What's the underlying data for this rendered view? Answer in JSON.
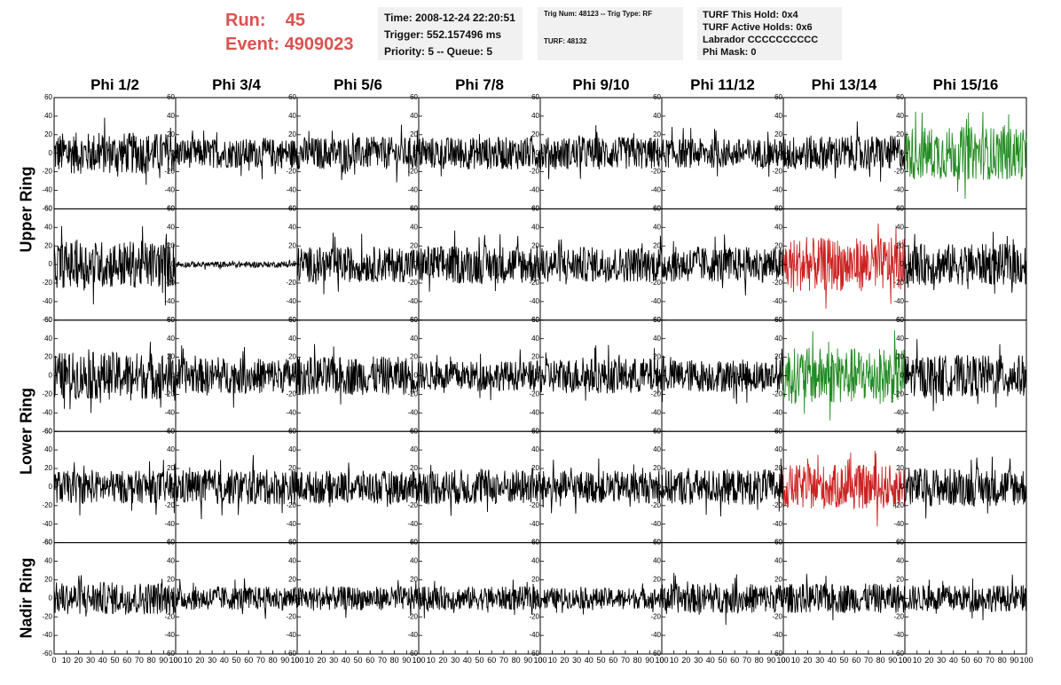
{
  "header": {
    "run_label": "Run:",
    "run_value": "45",
    "event_label": "Event:",
    "event_value": "4909023",
    "time": "Time: 2008-12-24 22:20:51",
    "trigger": "Trigger: 552.157496 ms",
    "priority": "Priority: 5 -- Queue: 5",
    "trig_num": "Trig Num: 48123 -- Trig Type: RF",
    "turf": "TURF: 48132",
    "turf_this_hold": "TURF This Hold: 0x4",
    "turf_active_holds": "TURF Active Holds: 0x6",
    "labrador": "Labrador CCCCCCCCCC",
    "phi_mask": "Phi Mask: 0"
  },
  "columns": [
    "Phi 1/2",
    "Phi 3/4",
    "Phi 5/6",
    "Phi 7/8",
    "Phi 9/10",
    "Phi 11/12",
    "Phi 13/14",
    "Phi 15/16"
  ],
  "ring_labels": [
    "Upper Ring",
    "Lower Ring",
    "Nadir Ring"
  ],
  "chart_data": {
    "type": "line",
    "panel_rows": 5,
    "panel_cols": 8,
    "xlim": [
      0,
      100
    ],
    "ylim": [
      -60,
      60
    ],
    "x_ticks": [
      "0",
      "10",
      "20",
      "30",
      "40",
      "50",
      "60",
      "70",
      "80",
      "90",
      "100"
    ],
    "y_ticks": [
      "-60",
      "-40",
      "-20",
      "0",
      "20",
      "40",
      "60"
    ],
    "colors": {
      "normal": "#000000",
      "green": "#228b22",
      "red": "#cc2222"
    },
    "panels": [
      [
        {
          "amp": 14,
          "color": "normal"
        },
        {
          "amp": 10,
          "color": "normal"
        },
        {
          "amp": 11,
          "color": "normal"
        },
        {
          "amp": 11,
          "color": "normal"
        },
        {
          "amp": 11,
          "color": "normal"
        },
        {
          "amp": 10,
          "color": "normal"
        },
        {
          "amp": 12,
          "color": "normal"
        },
        {
          "amp": 18,
          "color": "green"
        }
      ],
      [
        {
          "amp": 16,
          "color": "normal"
        },
        {
          "amp": 2,
          "color": "normal"
        },
        {
          "amp": 12,
          "color": "normal"
        },
        {
          "amp": 13,
          "color": "normal"
        },
        {
          "amp": 12,
          "color": "normal"
        },
        {
          "amp": 12,
          "color": "normal"
        },
        {
          "amp": 18,
          "color": "red"
        },
        {
          "amp": 14,
          "color": "normal"
        }
      ],
      [
        {
          "amp": 16,
          "color": "normal"
        },
        {
          "amp": 12,
          "color": "normal"
        },
        {
          "amp": 13,
          "color": "normal"
        },
        {
          "amp": 10,
          "color": "normal"
        },
        {
          "amp": 12,
          "color": "normal"
        },
        {
          "amp": 11,
          "color": "normal"
        },
        {
          "amp": 19,
          "color": "green"
        },
        {
          "amp": 14,
          "color": "normal"
        }
      ],
      [
        {
          "amp": 11,
          "color": "normal"
        },
        {
          "amp": 12,
          "color": "normal"
        },
        {
          "amp": 11,
          "color": "normal"
        },
        {
          "amp": 12,
          "color": "normal"
        },
        {
          "amp": 11,
          "color": "normal"
        },
        {
          "amp": 12,
          "color": "normal"
        },
        {
          "amp": 15,
          "color": "red"
        },
        {
          "amp": 13,
          "color": "normal"
        }
      ],
      [
        {
          "amp": 11,
          "color": "normal"
        },
        {
          "amp": 8,
          "color": "normal"
        },
        {
          "amp": 8,
          "color": "normal"
        },
        {
          "amp": 8,
          "color": "normal"
        },
        {
          "amp": 7,
          "color": "normal"
        },
        {
          "amp": 10,
          "color": "normal"
        },
        {
          "amp": 10,
          "color": "normal"
        },
        {
          "amp": 9,
          "color": "normal"
        }
      ]
    ]
  }
}
